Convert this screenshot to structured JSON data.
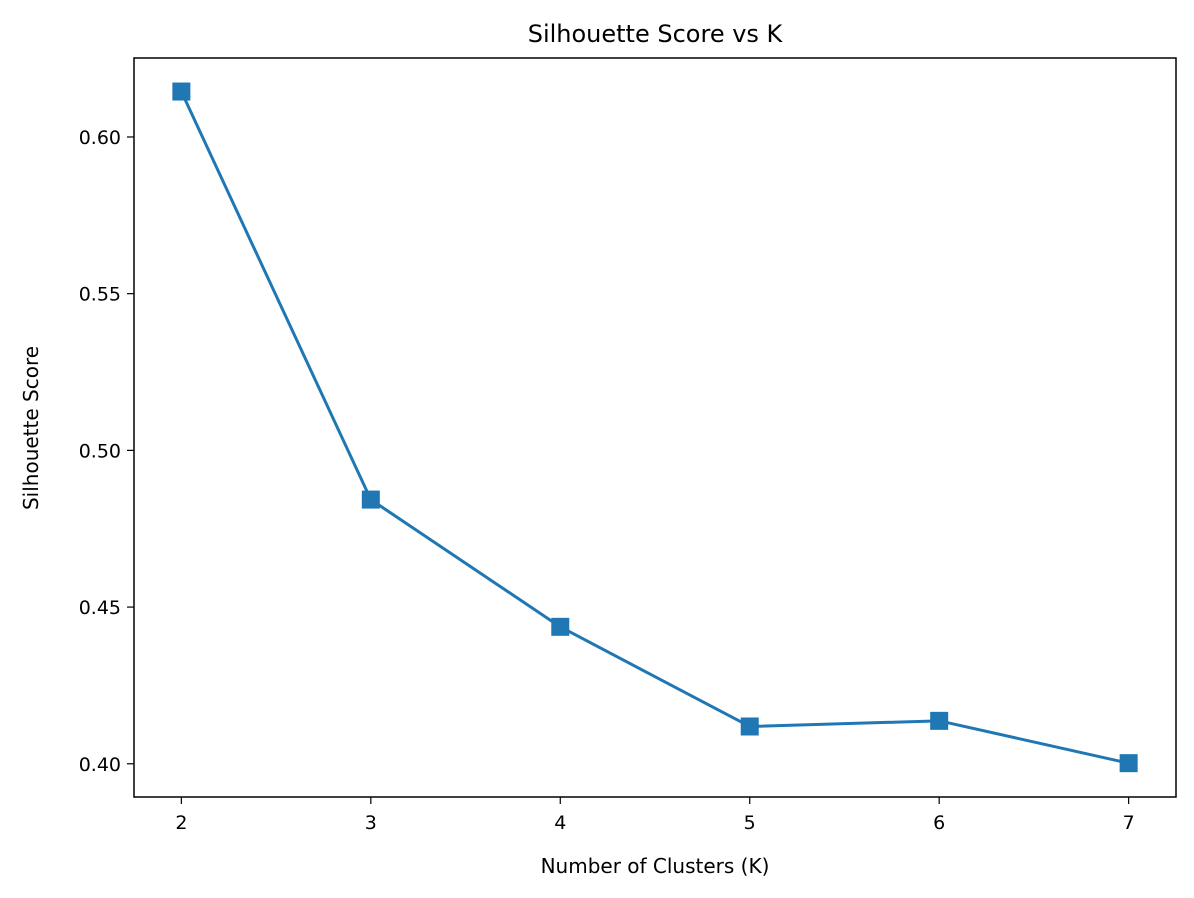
{
  "chart_data": {
    "type": "line",
    "title": "Silhouette Score vs K",
    "xlabel": "Number of Clusters (K)",
    "ylabel": "Silhouette Score",
    "x": [
      2,
      3,
      4,
      5,
      6,
      7
    ],
    "series": [
      {
        "values": [
          0.6145,
          0.4843,
          0.4437,
          0.4119,
          0.4137,
          0.4002
        ],
        "color": "#1f77b4",
        "marker": "square"
      }
    ],
    "xlim": [
      1.75,
      7.25
    ],
    "ylim": [
      0.3894,
      0.6252
    ],
    "xticks": [
      2,
      3,
      4,
      5,
      6,
      7
    ],
    "yticks": [
      0.4,
      0.45,
      0.5,
      0.55,
      0.6
    ],
    "xtick_labels": [
      "2",
      "3",
      "4",
      "5",
      "6",
      "7"
    ],
    "ytick_labels": [
      "0.40",
      "0.45",
      "0.50",
      "0.55",
      "0.60"
    ],
    "grid": false,
    "legend": "none"
  }
}
